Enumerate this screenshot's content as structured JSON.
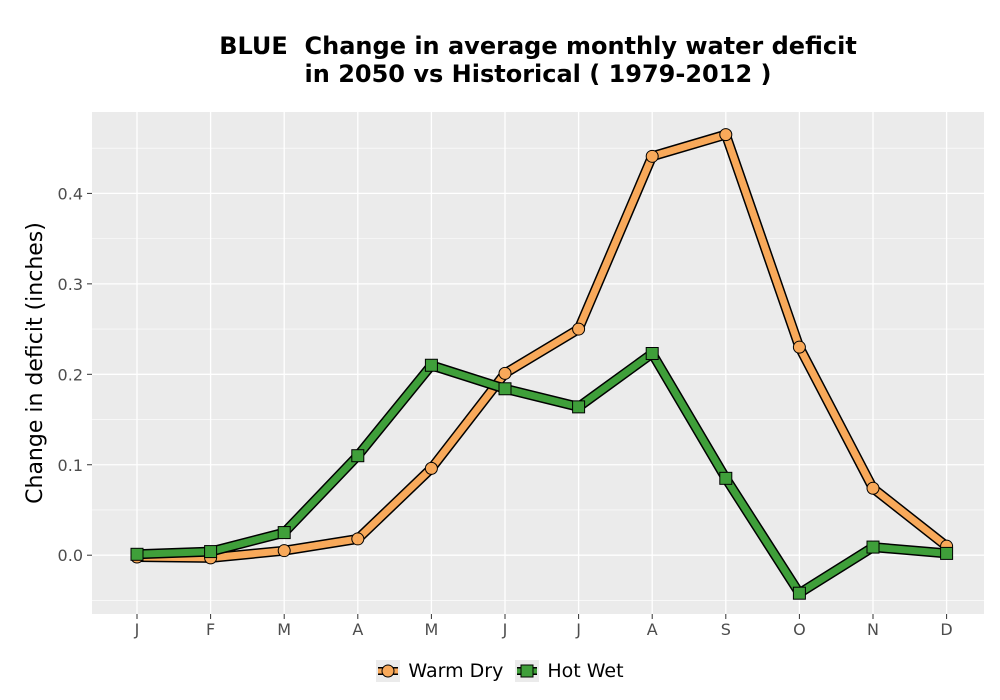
{
  "title": {
    "line1": "BLUE  Change in average monthly water deficit",
    "line2": "in 2050 vs Historical ( 1979-2012 )"
  },
  "chart_data": {
    "type": "line",
    "title": "BLUE  Change in average monthly water deficit in 2050 vs Historical ( 1979-2012 )",
    "xlabel": "",
    "ylabel": "Change in deficit (inches)",
    "categories": [
      "J",
      "F",
      "M",
      "A",
      "M",
      "J",
      "J",
      "A",
      "S",
      "O",
      "N",
      "D"
    ],
    "ylim": [
      -0.065,
      0.49
    ],
    "yticks": [
      0.0,
      0.1,
      0.2,
      0.3,
      0.4
    ],
    "ytick_labels": [
      "0.0",
      "0.1",
      "0.2",
      "0.3",
      "0.4"
    ],
    "grid": true,
    "legend_position": "bottom",
    "series": [
      {
        "name": "Warm Dry",
        "color": "#f8a95a",
        "marker": "circle",
        "values": [
          -0.002,
          -0.003,
          0.005,
          0.018,
          0.096,
          0.201,
          0.25,
          0.441,
          0.465,
          0.23,
          0.074,
          0.01
        ]
      },
      {
        "name": "Hot Wet",
        "color": "#3f9f3a",
        "marker": "square",
        "values": [
          0.001,
          0.004,
          0.025,
          0.11,
          0.21,
          0.184,
          0.164,
          0.223,
          0.085,
          -0.042,
          0.009,
          0.002
        ]
      }
    ]
  }
}
